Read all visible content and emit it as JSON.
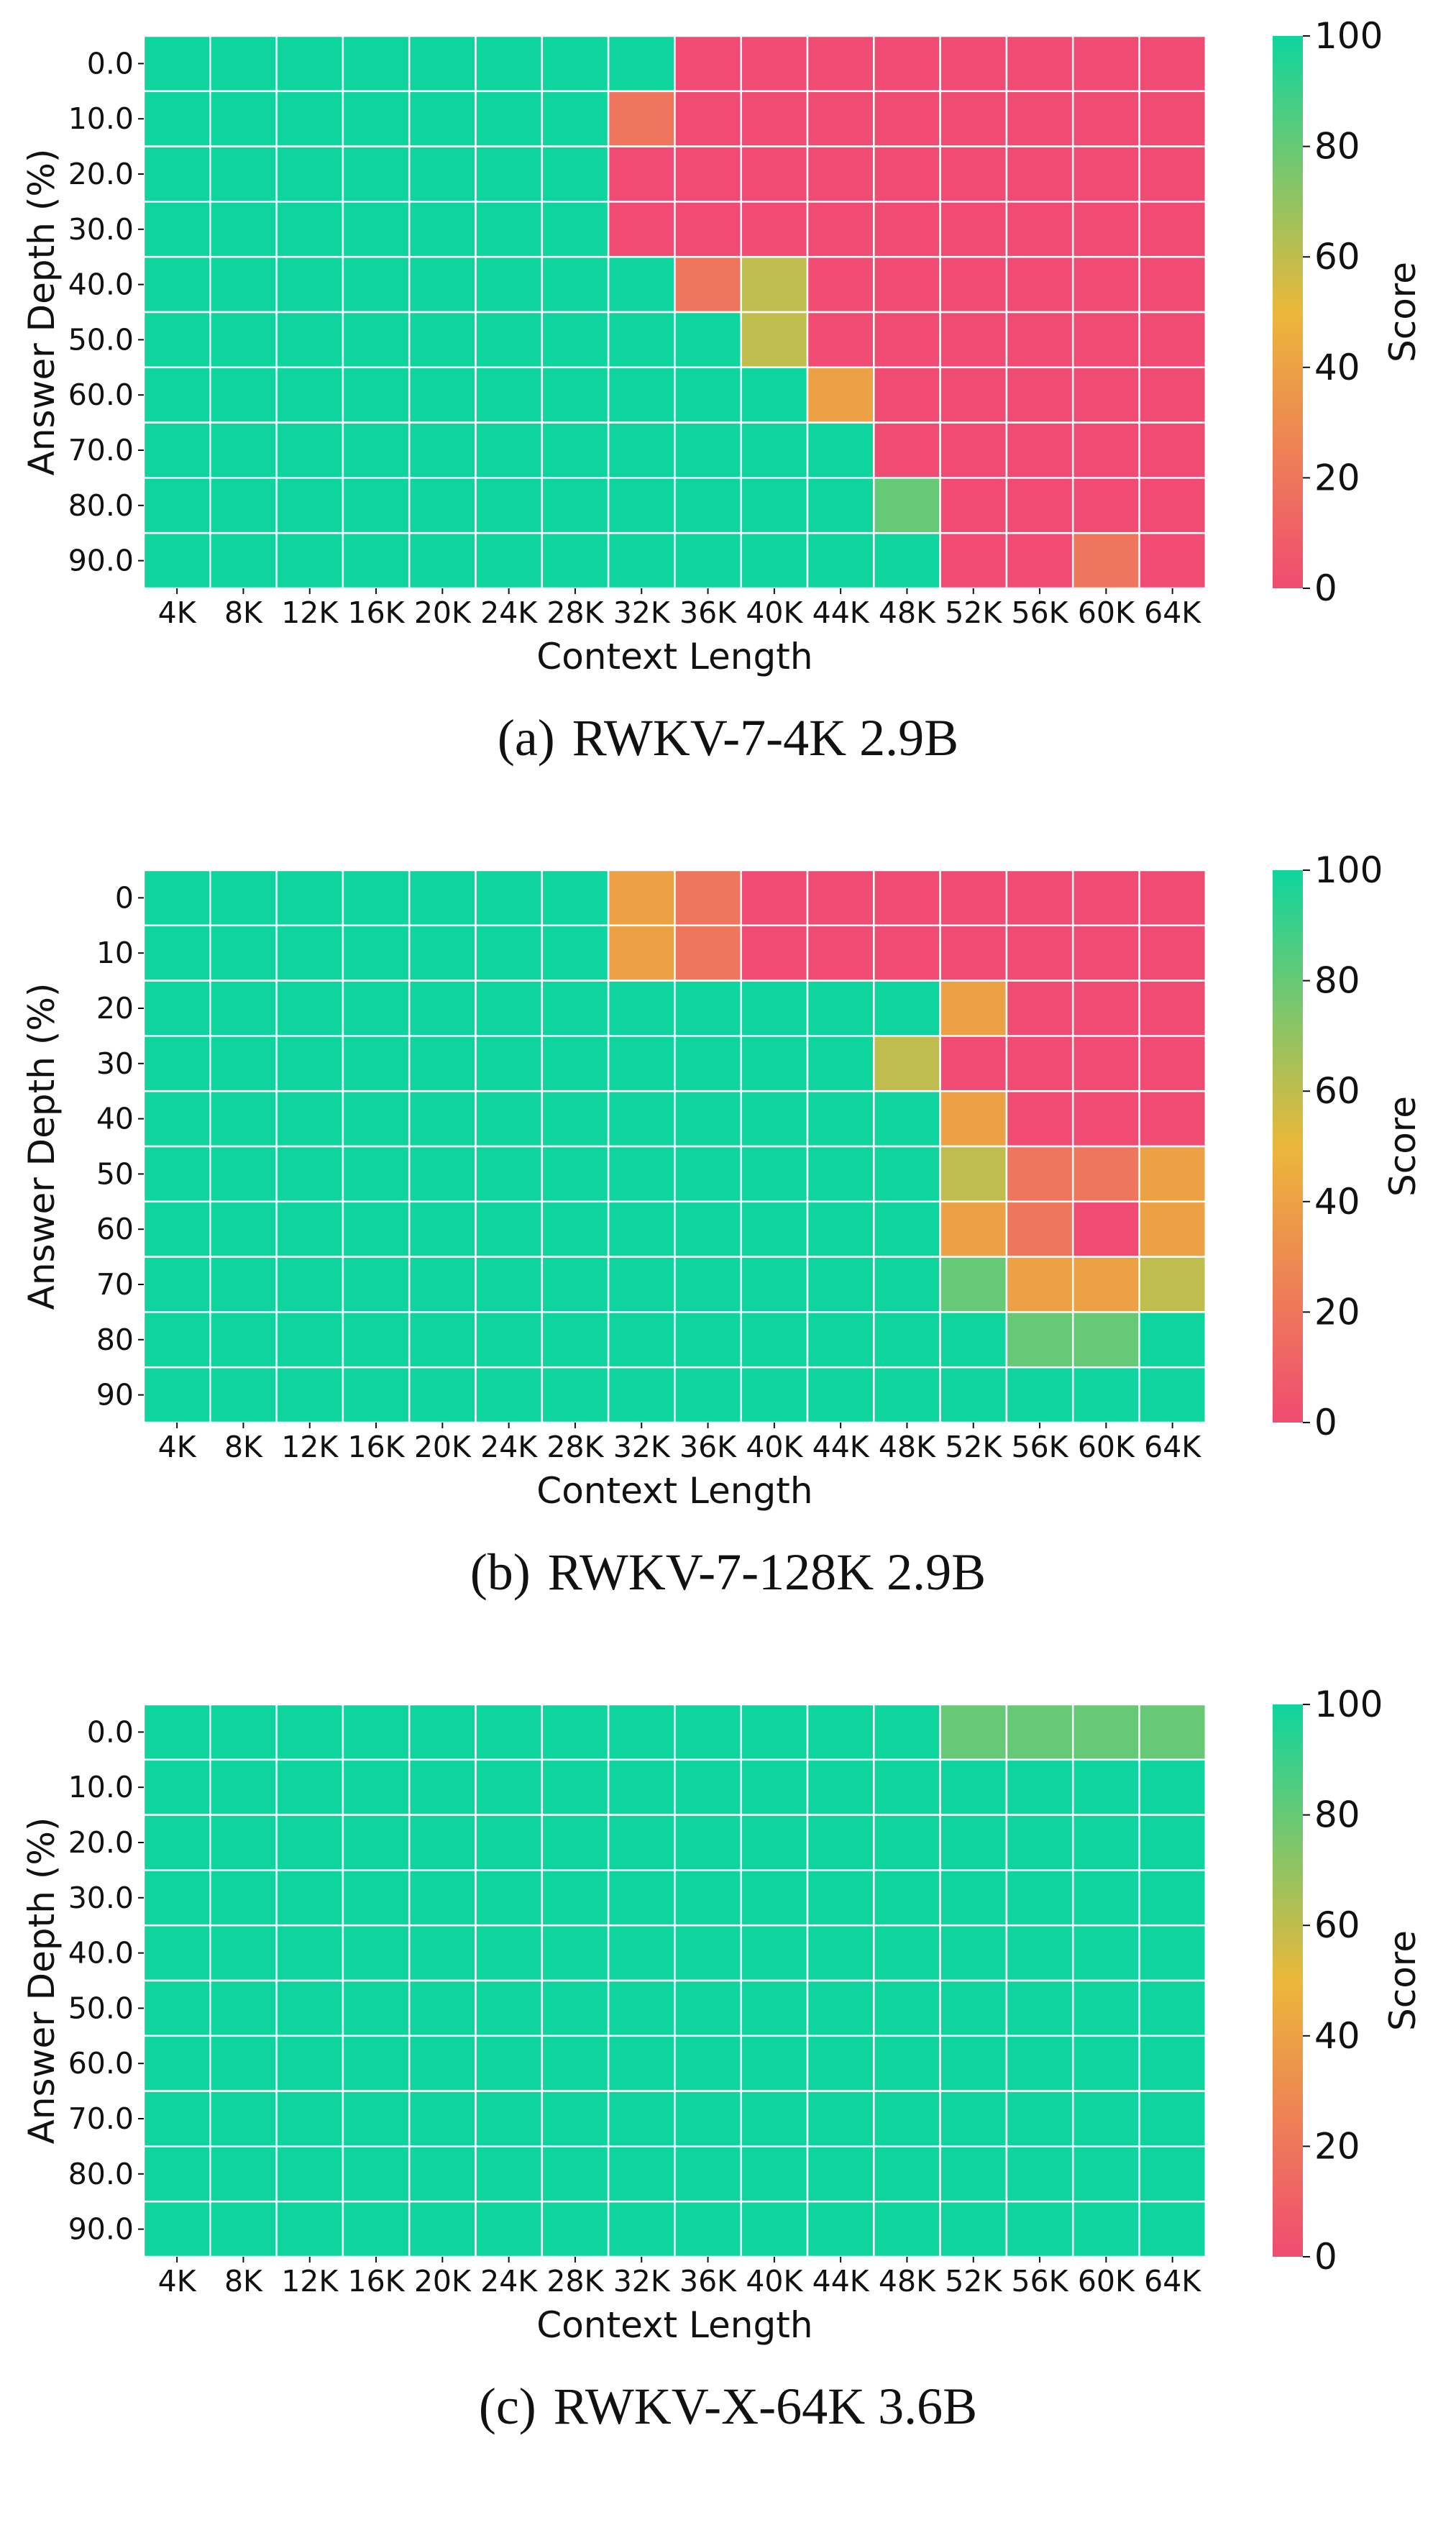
{
  "colors": {
    "high": "#0ED59E",
    "mid": "#EBB73A",
    "low": "#F04B72",
    "grid": "#ffffff"
  },
  "chart_data": [
    {
      "type": "heatmap",
      "panel_label": "(a)",
      "caption": "RWKV-7-4K 2.9B",
      "xlabel": "Context Length",
      "ylabel": "Answer Depth (%)",
      "colorbar_label": "Score",
      "colorbar_ticks": [
        "0",
        "20",
        "40",
        "60",
        "80",
        "100"
      ],
      "vmin": 0,
      "vmax": 100,
      "x": [
        "4K",
        "8K",
        "12K",
        "16K",
        "20K",
        "24K",
        "28K",
        "32K",
        "36K",
        "40K",
        "44K",
        "48K",
        "52K",
        "56K",
        "60K",
        "64K"
      ],
      "y": [
        "0.0",
        "10.0",
        "20.0",
        "30.0",
        "40.0",
        "50.0",
        "60.0",
        "70.0",
        "80.0",
        "90.0"
      ],
      "values": [
        [
          100,
          100,
          100,
          100,
          100,
          100,
          100,
          100,
          0,
          0,
          0,
          0,
          0,
          0,
          0,
          0
        ],
        [
          100,
          100,
          100,
          100,
          100,
          100,
          100,
          20,
          0,
          0,
          0,
          0,
          0,
          0,
          0,
          0
        ],
        [
          100,
          100,
          100,
          100,
          100,
          100,
          100,
          0,
          0,
          0,
          0,
          0,
          0,
          0,
          0,
          0
        ],
        [
          100,
          100,
          100,
          100,
          100,
          100,
          100,
          0,
          0,
          0,
          0,
          0,
          0,
          0,
          0,
          0
        ],
        [
          100,
          100,
          100,
          100,
          100,
          100,
          100,
          100,
          20,
          60,
          0,
          0,
          0,
          0,
          0,
          0
        ],
        [
          100,
          100,
          100,
          100,
          100,
          100,
          100,
          100,
          100,
          60,
          0,
          0,
          0,
          0,
          0,
          0
        ],
        [
          100,
          100,
          100,
          100,
          100,
          100,
          100,
          100,
          100,
          100,
          40,
          0,
          0,
          0,
          0,
          0
        ],
        [
          100,
          100,
          100,
          100,
          100,
          100,
          100,
          100,
          100,
          100,
          100,
          0,
          0,
          0,
          0,
          0
        ],
        [
          100,
          100,
          100,
          100,
          100,
          100,
          100,
          100,
          100,
          100,
          100,
          80,
          0,
          0,
          0,
          0
        ],
        [
          100,
          100,
          100,
          100,
          100,
          100,
          100,
          100,
          100,
          100,
          100,
          100,
          0,
          0,
          20,
          0
        ]
      ]
    },
    {
      "type": "heatmap",
      "panel_label": "(b)",
      "caption": "RWKV-7-128K 2.9B",
      "xlabel": "Context Length",
      "ylabel": "Answer Depth (%)",
      "colorbar_label": "Score",
      "colorbar_ticks": [
        "0",
        "20",
        "40",
        "60",
        "80",
        "100"
      ],
      "vmin": 0,
      "vmax": 100,
      "x": [
        "4K",
        "8K",
        "12K",
        "16K",
        "20K",
        "24K",
        "28K",
        "32K",
        "36K",
        "40K",
        "44K",
        "48K",
        "52K",
        "56K",
        "60K",
        "64K"
      ],
      "y": [
        "0",
        "10",
        "20",
        "30",
        "40",
        "50",
        "60",
        "70",
        "80",
        "90"
      ],
      "values": [
        [
          100,
          100,
          100,
          100,
          100,
          100,
          100,
          40,
          20,
          0,
          0,
          0,
          0,
          0,
          0,
          0
        ],
        [
          100,
          100,
          100,
          100,
          100,
          100,
          100,
          40,
          20,
          0,
          0,
          0,
          0,
          0,
          0,
          0
        ],
        [
          100,
          100,
          100,
          100,
          100,
          100,
          100,
          100,
          100,
          100,
          100,
          100,
          40,
          0,
          0,
          0
        ],
        [
          100,
          100,
          100,
          100,
          100,
          100,
          100,
          100,
          100,
          100,
          100,
          60,
          0,
          0,
          0,
          0
        ],
        [
          100,
          100,
          100,
          100,
          100,
          100,
          100,
          100,
          100,
          100,
          100,
          100,
          40,
          0,
          0,
          0
        ],
        [
          100,
          100,
          100,
          100,
          100,
          100,
          100,
          100,
          100,
          100,
          100,
          100,
          60,
          20,
          20,
          40
        ],
        [
          100,
          100,
          100,
          100,
          100,
          100,
          100,
          100,
          100,
          100,
          100,
          100,
          40,
          20,
          0,
          40
        ],
        [
          100,
          100,
          100,
          100,
          100,
          100,
          100,
          100,
          100,
          100,
          100,
          100,
          80,
          40,
          40,
          60
        ],
        [
          100,
          100,
          100,
          100,
          100,
          100,
          100,
          100,
          100,
          100,
          100,
          100,
          100,
          80,
          80,
          100
        ],
        [
          100,
          100,
          100,
          100,
          100,
          100,
          100,
          100,
          100,
          100,
          100,
          100,
          100,
          100,
          100,
          100
        ]
      ]
    },
    {
      "type": "heatmap",
      "panel_label": "(c)",
      "caption": "RWKV-X-64K 3.6B",
      "xlabel": "Context Length",
      "ylabel": "Answer Depth (%)",
      "colorbar_label": "Score",
      "colorbar_ticks": [
        "0",
        "20",
        "40",
        "60",
        "80",
        "100"
      ],
      "vmin": 0,
      "vmax": 100,
      "x": [
        "4K",
        "8K",
        "12K",
        "16K",
        "20K",
        "24K",
        "28K",
        "32K",
        "36K",
        "40K",
        "44K",
        "48K",
        "52K",
        "56K",
        "60K",
        "64K"
      ],
      "y": [
        "0.0",
        "10.0",
        "20.0",
        "30.0",
        "40.0",
        "50.0",
        "60.0",
        "70.0",
        "80.0",
        "90.0"
      ],
      "values": [
        [
          100,
          100,
          100,
          100,
          100,
          100,
          100,
          100,
          100,
          100,
          100,
          100,
          80,
          80,
          80,
          80
        ],
        [
          100,
          100,
          100,
          100,
          100,
          100,
          100,
          100,
          100,
          100,
          100,
          100,
          100,
          100,
          100,
          100
        ],
        [
          100,
          100,
          100,
          100,
          100,
          100,
          100,
          100,
          100,
          100,
          100,
          100,
          100,
          100,
          100,
          100
        ],
        [
          100,
          100,
          100,
          100,
          100,
          100,
          100,
          100,
          100,
          100,
          100,
          100,
          100,
          100,
          100,
          100
        ],
        [
          100,
          100,
          100,
          100,
          100,
          100,
          100,
          100,
          100,
          100,
          100,
          100,
          100,
          100,
          100,
          100
        ],
        [
          100,
          100,
          100,
          100,
          100,
          100,
          100,
          100,
          100,
          100,
          100,
          100,
          100,
          100,
          100,
          100
        ],
        [
          100,
          100,
          100,
          100,
          100,
          100,
          100,
          100,
          100,
          100,
          100,
          100,
          100,
          100,
          100,
          100
        ],
        [
          100,
          100,
          100,
          100,
          100,
          100,
          100,
          100,
          100,
          100,
          100,
          100,
          100,
          100,
          100,
          100
        ],
        [
          100,
          100,
          100,
          100,
          100,
          100,
          100,
          100,
          100,
          100,
          100,
          100,
          100,
          100,
          100,
          100
        ],
        [
          100,
          100,
          100,
          100,
          100,
          100,
          100,
          100,
          100,
          100,
          100,
          100,
          100,
          100,
          100,
          100
        ]
      ]
    }
  ]
}
